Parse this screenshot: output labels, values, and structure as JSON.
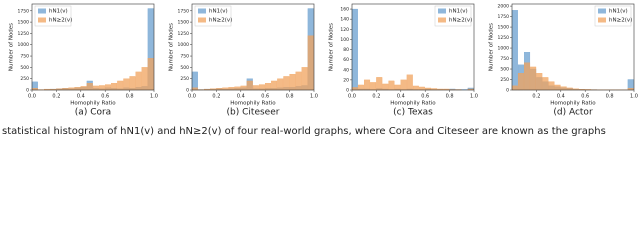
{
  "chart_data": [
    {
      "type": "histogram",
      "subcaption": "(a) Cora",
      "x_label": "Homophily Ratio",
      "y_label": "Number of Nodes",
      "legend": "upper left",
      "bins": [
        0,
        0.05,
        0.1,
        0.15,
        0.2,
        0.25,
        0.3,
        0.35,
        0.4,
        0.45,
        0.5,
        0.55,
        0.6,
        0.65,
        0.7,
        0.75,
        0.8,
        0.85,
        0.9,
        0.95,
        1.0
      ],
      "xlim": [
        0,
        1
      ],
      "xticks": [
        {
          "value": 0,
          "label": "0.0"
        },
        0.2,
        0.4,
        0.6,
        0.8,
        {
          "value": 1,
          "label": "1.0"
        }
      ],
      "ylim": [
        0,
        1900
      ],
      "yticks": [
        0,
        250,
        500,
        750,
        1000,
        1250,
        1500,
        1750
      ],
      "series": [
        {
          "name": "hN1(v)",
          "color": "#6a9fcf",
          "values": [
            180,
            0,
            10,
            20,
            30,
            40,
            30,
            50,
            60,
            200,
            40,
            30,
            50,
            40,
            30,
            50,
            40,
            60,
            80,
            1800
          ]
        },
        {
          "name": "hN≥2(v)",
          "color": "#f0a35e",
          "values": [
            40,
            10,
            20,
            20,
            30,
            40,
            50,
            60,
            80,
            150,
            90,
            100,
            120,
            150,
            200,
            250,
            300,
            400,
            500,
            700
          ]
        }
      ]
    },
    {
      "type": "histogram",
      "subcaption": "(b) Citeseer",
      "x_label": "Homophily Ratio",
      "y_label": "Number of Nodes",
      "legend": "upper left",
      "bins": [
        0,
        0.05,
        0.1,
        0.15,
        0.2,
        0.25,
        0.3,
        0.35,
        0.4,
        0.45,
        0.5,
        0.55,
        0.6,
        0.65,
        0.7,
        0.75,
        0.8,
        0.85,
        0.9,
        0.95,
        1.0
      ],
      "xlim": [
        0,
        1
      ],
      "xticks": [
        {
          "value": 0,
          "label": "0.0"
        },
        0.2,
        0.4,
        0.6,
        0.8,
        {
          "value": 1,
          "label": "1.0"
        }
      ],
      "ylim": [
        0,
        1900
      ],
      "yticks": [
        0,
        250,
        500,
        750,
        1000,
        1250,
        1500,
        1750
      ],
      "series": [
        {
          "name": "hN1(v)",
          "color": "#6a9fcf",
          "values": [
            400,
            10,
            20,
            20,
            30,
            20,
            30,
            40,
            50,
            250,
            30,
            30,
            40,
            40,
            50,
            60,
            60,
            80,
            100,
            1800
          ]
        },
        {
          "name": "hN≥2(v)",
          "color": "#f0a35e",
          "values": [
            50,
            10,
            20,
            30,
            40,
            50,
            60,
            70,
            90,
            200,
            100,
            120,
            150,
            200,
            250,
            300,
            350,
            400,
            500,
            1200
          ]
        }
      ]
    },
    {
      "type": "histogram",
      "subcaption": "(c) Texas",
      "x_label": "Homophily Ratio",
      "y_label": "Number of Nodes",
      "legend": "upper right",
      "bins": [
        0,
        0.05,
        0.1,
        0.15,
        0.2,
        0.25,
        0.3,
        0.35,
        0.4,
        0.45,
        0.5,
        0.55,
        0.6,
        0.65,
        0.7,
        0.75,
        0.8,
        0.85,
        0.9,
        0.95,
        1.0
      ],
      "xlim": [
        0,
        1
      ],
      "xticks": [
        {
          "value": 0,
          "label": "0.0"
        },
        0.2,
        0.4,
        0.6,
        0.8,
        {
          "value": 1,
          "label": "1.0"
        }
      ],
      "ylim": [
        0,
        170
      ],
      "yticks": [
        0,
        20,
        40,
        60,
        80,
        100,
        120,
        140,
        160
      ],
      "series": [
        {
          "name": "hN1(v)",
          "color": "#6a9fcf",
          "values": [
            160,
            2,
            2,
            1,
            3,
            2,
            1,
            2,
            1,
            2,
            1,
            1,
            2,
            1,
            1,
            1,
            2,
            1,
            1,
            4
          ]
        },
        {
          "name": "hN≥2(v)",
          "color": "#f0a35e",
          "values": [
            5,
            10,
            20,
            15,
            25,
            12,
            18,
            10,
            20,
            30,
            8,
            6,
            4,
            3,
            2,
            2,
            1,
            1,
            0,
            2
          ]
        }
      ]
    },
    {
      "type": "histogram",
      "subcaption": "(d) Actor",
      "x_label": "Homophily Ratio",
      "y_label": "Number of Nodes",
      "legend": "upper right",
      "bins": [
        0,
        0.05,
        0.1,
        0.15,
        0.2,
        0.25,
        0.3,
        0.35,
        0.4,
        0.45,
        0.5,
        0.55,
        0.6,
        0.65,
        0.7,
        0.75,
        0.8,
        0.85,
        0.9,
        0.95,
        1.0
      ],
      "xlim": [
        0,
        1
      ],
      "xticks": [
        0.2,
        0.4,
        0.6,
        0.8,
        {
          "value": 1,
          "label": "1.0"
        }
      ],
      "ylim": [
        0,
        2050
      ],
      "yticks": [
        0,
        250,
        500,
        750,
        1000,
        1250,
        1500,
        1750,
        2000
      ],
      "series": [
        {
          "name": "hN1(v)",
          "color": "#6a9fcf",
          "values": [
            1900,
            600,
            900,
            500,
            300,
            200,
            100,
            80,
            50,
            40,
            20,
            20,
            10,
            10,
            5,
            5,
            5,
            5,
            5,
            250
          ]
        },
        {
          "name": "hN≥2(v)",
          "color": "#f0a35e",
          "values": [
            100,
            400,
            650,
            550,
            400,
            300,
            200,
            120,
            80,
            50,
            30,
            20,
            15,
            10,
            5,
            5,
            5,
            5,
            5,
            40
          ]
        }
      ]
    }
  ],
  "caption": "statistical histogram of hN1(v) and hN≥2(v) of four real-world graphs, where Cora and Citeseer are known as the graphs"
}
